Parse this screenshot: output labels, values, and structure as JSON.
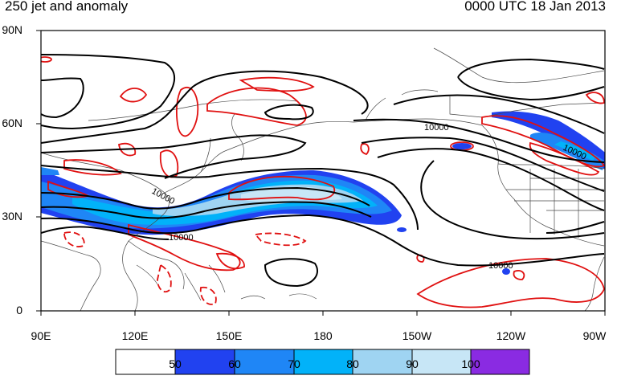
{
  "title_left": "250 jet and anomaly",
  "title_right": "0000 UTC 18 Jan 2013",
  "y_ticks": [
    "90N",
    "60N",
    "30N",
    "0"
  ],
  "x_ticks": [
    "90E",
    "120E",
    "150E",
    "180",
    "150W",
    "120W",
    "90W"
  ],
  "contour_labels": [
    "10000",
    "10000",
    "10000",
    "10000",
    "10000"
  ],
  "colorbar": {
    "levels": [
      "50",
      "60",
      "70",
      "80",
      "90",
      "100"
    ],
    "colors": [
      "#ffffff",
      "#2142f0",
      "#1f86f6",
      "#02b2f9",
      "#9fd4f2",
      "#c7e6f6",
      "#8a2be2"
    ]
  },
  "colors": {
    "height_contours": "#000000",
    "anomaly_contours": "#e01010",
    "coastlines": "#4a4a4a"
  }
}
